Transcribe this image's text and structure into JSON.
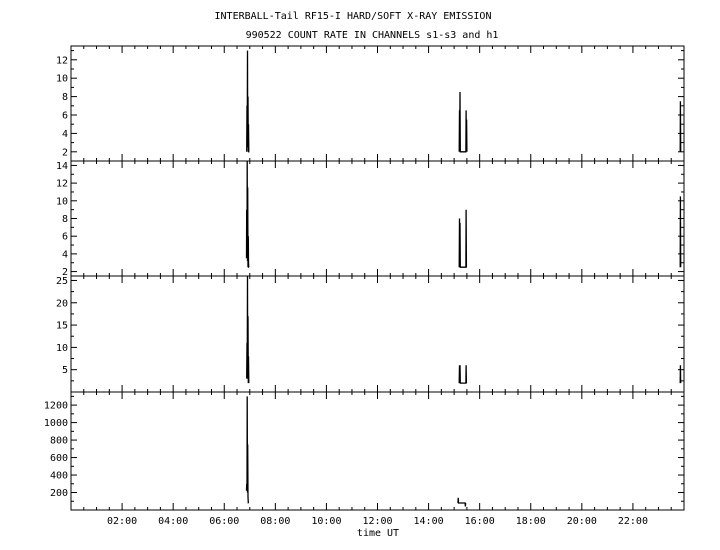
{
  "chart_data": {
    "type": "line",
    "title": "INTERBALL-Tail RF15-I HARD/SOFT X-RAY EMISSION",
    "subtitle": "990522  COUNT RATE IN CHANNELS s1-s3 and h1",
    "xlabel": "time UT",
    "x_unit": "hours UT",
    "xlim": [
      0,
      24
    ],
    "x_ticks": [
      2,
      4,
      6,
      8,
      10,
      12,
      14,
      16,
      18,
      20,
      22
    ],
    "x_tick_labels": [
      "02:00",
      "04:00",
      "06:00",
      "08:00",
      "10:00",
      "12:00",
      "14:00",
      "16:00",
      "18:00",
      "20:00",
      "22:00"
    ],
    "grid": false,
    "panels": [
      {
        "ylim": [
          1,
          13.5
        ],
        "y_ticks": [
          2,
          4,
          6,
          8,
          10,
          12
        ],
        "y_tick_labels": [
          "2",
          "4",
          "6",
          "8",
          "10",
          "12"
        ],
        "series": [
          {
            "x": [
              6.88,
              6.89,
              6.9,
              6.91,
              6.92,
              6.93,
              6.94,
              6.95,
              6.96,
              6.97,
              6.98,
              15.2,
              15.21,
              15.22,
              15.23,
              15.24,
              15.25,
              15.46,
              15.47,
              15.48,
              15.49,
              15.5,
              23.85,
              23.86,
              23.87
            ],
            "y": [
              2,
              7,
              2.5,
              13,
              3,
              8,
              2,
              5,
              2,
              2,
              2,
              2,
              6.5,
              2,
              8.5,
              2,
              2,
              2,
              6.5,
              2,
              5.5,
              2,
              2,
              7.5,
              2
            ]
          }
        ]
      },
      {
        "ylim": [
          1.5,
          14.5
        ],
        "y_ticks": [
          2,
          4,
          6,
          8,
          10,
          12,
          14
        ],
        "y_tick_labels": [
          "2",
          "4",
          "6",
          "8",
          "10",
          "12",
          "14"
        ],
        "series": [
          {
            "x": [
              6.87,
              6.88,
              6.89,
              6.9,
              6.91,
              6.92,
              6.93,
              6.94,
              6.95,
              6.96,
              6.97,
              15.2,
              15.21,
              15.22,
              15.23,
              15.24,
              15.46,
              15.47,
              15.48,
              15.49,
              23.85,
              23.86,
              23.87
            ],
            "y": [
              3.5,
              9,
              3.5,
              14.5,
              3.2,
              11.5,
              2.5,
              6,
              3,
              2.5,
              2.5,
              2.5,
              8,
              2.5,
              7.5,
              2.5,
              2.5,
              9,
              2.5,
              2.5,
              2.5,
              10.5,
              2.5
            ]
          }
        ]
      },
      {
        "ylim": [
          0,
          26
        ],
        "y_ticks": [
          5,
          10,
          15,
          20,
          25
        ],
        "y_tick_labels": [
          "5",
          "10",
          "15",
          "20",
          "25"
        ],
        "series": [
          {
            "x": [
              6.88,
              6.89,
              6.9,
              6.91,
              6.92,
              6.93,
              6.94,
              6.95,
              6.96,
              15.2,
              15.21,
              15.22,
              15.23,
              15.24,
              15.46,
              15.47,
              15.48,
              15.49,
              23.85,
              23.86,
              23.87
            ],
            "y": [
              3,
              11,
              3,
              26,
              3,
              17,
              2,
              8,
              2,
              2,
              6,
              2,
              6,
              2,
              2,
              6,
              2,
              2,
              2,
              6,
              2
            ]
          }
        ]
      },
      {
        "ylim": [
          0,
          1350
        ],
        "y_ticks": [
          200,
          400,
          600,
          800,
          1000,
          1200
        ],
        "y_tick_labels": [
          "200",
          "400",
          "600",
          "800",
          "1000",
          "1200"
        ],
        "series": [
          {
            "x": [
              6.87,
              6.88,
              6.89,
              6.9,
              6.91,
              6.92,
              6.93,
              6.94,
              6.95,
              15.15,
              15.16,
              15.17,
              15.43,
              15.44,
              15.45
            ],
            "y": [
              220,
              300,
              250,
              1300,
              200,
              750,
              150,
              80,
              80,
              80,
              140,
              80,
              80,
              40,
              80
            ]
          }
        ]
      }
    ]
  }
}
